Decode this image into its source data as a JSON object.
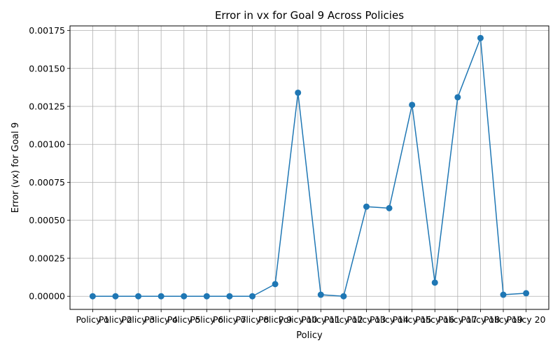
{
  "chart_data": {
    "type": "line",
    "title": "Error in vx for Goal 9 Across Policies",
    "xlabel": "Policy",
    "ylabel": "Error (vx) for Goal 9",
    "categories": [
      "Policy 1",
      "Policy 2",
      "Policy 3",
      "Policy 4",
      "Policy 5",
      "Policy 6",
      "Policy 7",
      "Policy 8",
      "Policy 9",
      "Policy 10",
      "Policy 11",
      "Policy 12",
      "Policy 13",
      "Policy 14",
      "Policy 15",
      "Policy 16",
      "Policy 17",
      "Policy 18",
      "Policy 19",
      "Policy 20"
    ],
    "series": [
      {
        "values": [
          0.0,
          0.0,
          0.0,
          0.0,
          0.0,
          0.0,
          0.0,
          0.0,
          8e-05,
          0.00134,
          1e-05,
          0.0,
          0.00059,
          0.00058,
          0.00126,
          9e-05,
          0.00131,
          0.0017,
          1e-05,
          2e-05
        ],
        "color": "#1f77b4"
      }
    ],
    "ylim": [
      -8.65e-05,
      0.00178
    ],
    "yticks": [
      0.0,
      0.00025,
      0.0005,
      0.00075,
      0.001,
      0.00125,
      0.0015,
      0.00175
    ],
    "ytick_labels": [
      "0.00000",
      "0.00025",
      "0.00050",
      "0.00075",
      "0.00100",
      "0.00125",
      "0.00150",
      "0.00175"
    ],
    "grid": true,
    "marker": "circle"
  }
}
